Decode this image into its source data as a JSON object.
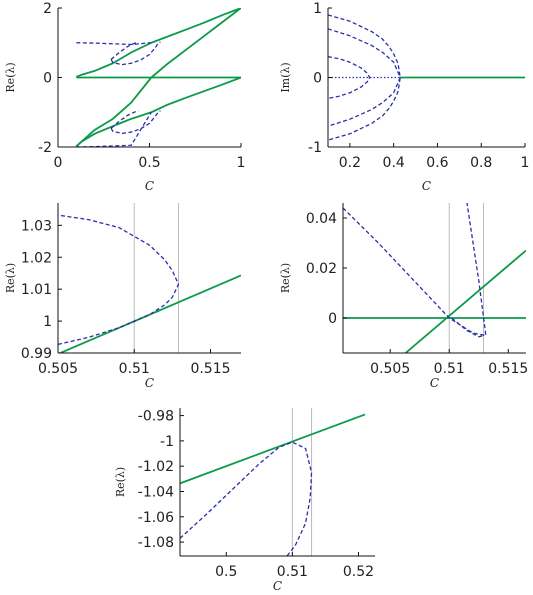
{
  "colors": {
    "solid": "#0a9a48",
    "dashed": "#2b2fa8",
    "vline": "#bbbbbb",
    "axis": "#111111"
  },
  "chart_data": [
    {
      "id": "p1",
      "type": "line",
      "xlabel": "C",
      "ylabel": "Re(λ)",
      "xlim": [
        0,
        1
      ],
      "ylim": [
        -2,
        2
      ],
      "xticks": [
        0,
        0.5,
        1
      ],
      "xtick_labels": [
        "0",
        "0.5",
        "1"
      ],
      "yticks": [
        -2,
        0,
        2
      ],
      "ytick_labels": [
        "-2",
        "0",
        "2"
      ],
      "vlines": [],
      "series": [
        {
          "style": "solid",
          "x": [
            0.1,
            1
          ],
          "y": [
            0,
            0
          ]
        },
        {
          "style": "solid",
          "x": [
            0.1,
            0.2,
            0.3,
            0.4,
            0.51,
            0.6,
            0.7,
            0.8,
            0.9,
            1
          ],
          "y": [
            -1.98,
            -1.51,
            -1.19,
            -0.72,
            0,
            0.4,
            0.8,
            1.2,
            1.6,
            2
          ]
        },
        {
          "style": "solid",
          "x": [
            0.1,
            0.13,
            0.2,
            0.3,
            0.4,
            0.51,
            0.6,
            0.7,
            0.8,
            0.9,
            1
          ],
          "y": [
            0.02,
            0.08,
            0.19,
            0.41,
            0.72,
            1,
            1.18,
            1.38,
            1.58,
            1.8,
            2
          ]
        },
        {
          "style": "solid",
          "x": [
            0.1,
            0.13,
            0.2,
            0.3,
            0.4,
            0.51,
            0.6,
            0.7,
            0.8,
            0.9,
            1
          ],
          "y": [
            -1.98,
            -1.84,
            -1.62,
            -1.4,
            -1.19,
            -1,
            -0.78,
            -0.58,
            -0.39,
            -0.2,
            0
          ]
        },
        {
          "style": "dashed",
          "x": [
            0.1,
            0.2,
            0.3,
            0.4,
            0.51
          ],
          "y": [
            1,
            0.99,
            0.97,
            0.95,
            1
          ]
        },
        {
          "style": "dashed",
          "x": [
            0.1,
            0.2,
            0.3,
            0.4,
            0.51
          ],
          "y": [
            -2,
            -1.99,
            -1.97,
            -1.95,
            -1
          ]
        },
        {
          "style": "dashed",
          "x": [
            0.29,
            0.3,
            0.35,
            0.4,
            0.45,
            0.5,
            0.53,
            0.55,
            0.56
          ],
          "y": [
            0.52,
            0.43,
            0.37,
            0.41,
            0.5,
            0.66,
            0.85,
            1.0,
            1.02
          ]
        },
        {
          "style": "dashed",
          "x": [
            0.29,
            0.3,
            0.35,
            0.4,
            0.45,
            0.5,
            0.53,
            0.55,
            0.56
          ],
          "y": [
            -1.46,
            -1.55,
            -1.61,
            -1.57,
            -1.48,
            -1.32,
            -1.13,
            -0.98,
            -0.96
          ]
        },
        {
          "style": "dashed",
          "x": [
            0.29,
            0.33,
            0.38,
            0.42,
            0.44
          ],
          "y": [
            0.52,
            0.7,
            0.89,
            0.99,
            1.01
          ]
        },
        {
          "style": "dashed",
          "x": [
            0.29,
            0.33,
            0.38,
            0.42,
            0.44
          ],
          "y": [
            -1.46,
            -1.28,
            -1.09,
            -0.99,
            -0.97
          ]
        }
      ]
    },
    {
      "id": "p2",
      "type": "line",
      "xlabel": "C",
      "ylabel": "Im(λ)",
      "xlim": [
        0.1,
        1
      ],
      "ylim": [
        -1,
        1
      ],
      "xticks": [
        0.2,
        0.4,
        0.6,
        0.8,
        1
      ],
      "xtick_labels": [
        "0.2",
        "0.4",
        "0.6",
        "0.8",
        "1"
      ],
      "yticks": [
        -1,
        0,
        1
      ],
      "ytick_labels": [
        "-1",
        "0",
        "1"
      ],
      "vlines": [],
      "series": [
        {
          "style": "solid",
          "x": [
            0.43,
            1
          ],
          "y": [
            0,
            0
          ]
        },
        {
          "style": "dotted",
          "x": [
            0.1,
            0.43
          ],
          "y": [
            0,
            0
          ]
        },
        {
          "style": "dashed",
          "x": [
            0.1,
            0.2,
            0.3,
            0.35,
            0.38,
            0.4,
            0.42,
            0.43,
            0.42,
            0.4,
            0.38,
            0.35,
            0.3,
            0.2,
            0.1
          ],
          "y": [
            0.9,
            0.81,
            0.66,
            0.55,
            0.44,
            0.34,
            0.2,
            0,
            -0.2,
            -0.34,
            -0.44,
            -0.55,
            -0.66,
            -0.81,
            -0.9
          ]
        },
        {
          "style": "dashed",
          "x": [
            0.1,
            0.15,
            0.2,
            0.25,
            0.28,
            0.29,
            0.28,
            0.25,
            0.2,
            0.15,
            0.1
          ],
          "y": [
            0.3,
            0.27,
            0.22,
            0.14,
            0.06,
            0,
            -0.06,
            -0.14,
            -0.22,
            -0.27,
            -0.3
          ]
        },
        {
          "style": "dashed",
          "x": [
            0.1,
            0.2,
            0.3,
            0.35,
            0.4,
            0.43,
            0.4,
            0.35,
            0.3,
            0.2,
            0.1
          ],
          "y": [
            0.7,
            0.6,
            0.46,
            0.36,
            0.22,
            0,
            -0.22,
            -0.36,
            -0.46,
            -0.6,
            -0.7
          ]
        }
      ]
    },
    {
      "id": "p3",
      "type": "line",
      "xlabel": "C",
      "ylabel": "Re(λ)",
      "xlim": [
        0.505,
        0.517
      ],
      "ylim": [
        0.99,
        1.037
      ],
      "xticks": [
        0.505,
        0.51,
        0.515
      ],
      "xtick_labels": [
        "0.505",
        "0.51",
        "0.515"
      ],
      "yticks": [
        0.99,
        1,
        1.01,
        1.02,
        1.03
      ],
      "ytick_labels": [
        "0.99",
        "1",
        "1.01",
        "1.02",
        "1.03"
      ],
      "vlines": [
        0.51,
        0.5129
      ],
      "series": [
        {
          "style": "solid",
          "x": [
            0.505,
            0.517
          ],
          "y": [
            0.9897,
            1.0143
          ]
        },
        {
          "style": "dashed",
          "x": [
            0.505,
            0.507,
            0.509,
            0.511,
            0.512,
            0.5125,
            0.5129,
            0.5125,
            0.512,
            0.511,
            0.509,
            0.507,
            0.505
          ],
          "y": [
            0.9927,
            0.9949,
            0.9979,
            1.002,
            1.0051,
            1.0075,
            1.0115,
            1.0158,
            1.0192,
            1.0238,
            1.0293,
            1.0318,
            1.0332
          ]
        }
      ]
    },
    {
      "id": "p4",
      "type": "line",
      "xlabel": "C",
      "ylabel": "Re(λ)",
      "xlim": [
        0.501,
        0.5165
      ],
      "ylim": [
        -0.014,
        0.046
      ],
      "xticks": [
        0.505,
        0.51,
        0.515
      ],
      "xtick_labels": [
        "0.505",
        "0.51",
        "0.515"
      ],
      "yticks": [
        0,
        0.02,
        0.04
      ],
      "ytick_labels": [
        "0",
        "0.02",
        "0.04"
      ],
      "vlines": [
        0.51,
        0.5129
      ],
      "series": [
        {
          "style": "solid",
          "x": [
            0.501,
            0.5165
          ],
          "y": [
            0,
            0
          ]
        },
        {
          "style": "solid",
          "x": [
            0.5063,
            0.5165
          ],
          "y": [
            -0.014,
            0.027
          ]
        },
        {
          "style": "dashed",
          "x": [
            0.501,
            0.504,
            0.507,
            0.51,
            0.512,
            0.5131,
            0.5125,
            0.5115
          ],
          "y": [
            0.044,
            0.03,
            0.015,
            0,
            -0.006,
            -0.007,
            0.015,
            0.046
          ]
        },
        {
          "style": "dashed",
          "x": [
            0.5102,
            0.5115,
            0.5125,
            0.513
          ],
          "y": [
            0,
            -0.005,
            -0.0075,
            -0.007
          ]
        }
      ]
    },
    {
      "id": "p5",
      "type": "line",
      "xlabel": "C",
      "ylabel": "Re(λ)",
      "xlim": [
        0.493,
        0.5225
      ],
      "ylim": [
        -1.091,
        -0.974
      ],
      "xticks": [
        0.5,
        0.51,
        0.52
      ],
      "xtick_labels": [
        "0.5",
        "0.51",
        "0.52"
      ],
      "yticks": [
        -1.08,
        -1.06,
        -1.04,
        -1.02,
        -1,
        -0.98
      ],
      "ytick_labels": [
        "-1.08",
        "-1.06",
        "-1.04",
        "-1.02",
        "-1",
        "-0.98"
      ],
      "vlines": [
        0.51,
        0.5129
      ],
      "series": [
        {
          "style": "solid",
          "x": [
            0.493,
            0.521
          ],
          "y": [
            -1.0336,
            -0.9791
          ]
        },
        {
          "style": "dashed",
          "x": [
            0.493,
            0.497,
            0.501,
            0.505,
            0.508,
            0.51,
            0.512,
            0.5129,
            0.5127,
            0.512,
            0.5105,
            0.5092
          ],
          "y": [
            -1.077,
            -1.058,
            -1.038,
            -1.018,
            -1.005,
            -1.001,
            -1.006,
            -1.025,
            -1.045,
            -1.065,
            -1.082,
            -1.091
          ]
        }
      ]
    }
  ]
}
